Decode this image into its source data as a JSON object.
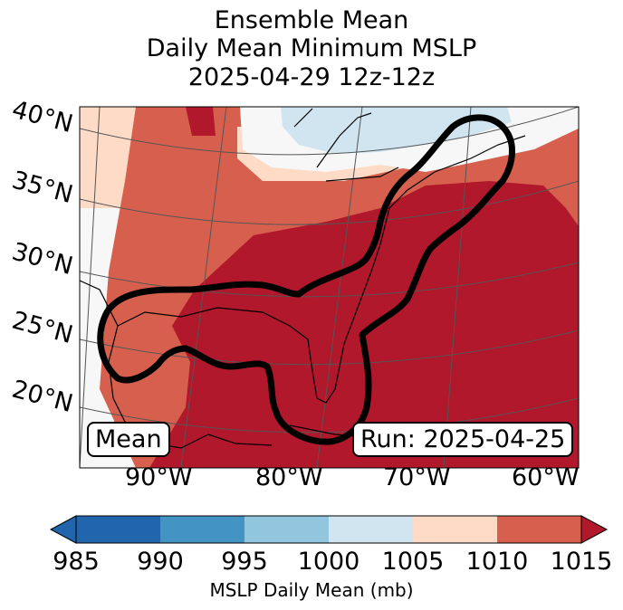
{
  "title": {
    "line1": "Ensemble Mean",
    "line2": "Daily Mean Minimum MSLP",
    "line3": "2025-04-29 12z-12z"
  },
  "map": {
    "lat_labels": [
      "40°N",
      "35°N",
      "30°N",
      "25°N",
      "20°N"
    ],
    "lon_labels": [
      "90°W",
      "80°W",
      "70°W",
      "60°W"
    ],
    "badge_left": "Mean",
    "badge_right": "Run: 2025-04-25",
    "colors": {
      "c985": "#2166ac",
      "c990": "#4393c3",
      "c995": "#92c5de",
      "c1000": "#d1e5f0",
      "c1005": "#f7f7f7",
      "c1010": "#fddbc7",
      "c1015": "#d6604d",
      "over": "#b2182b"
    }
  },
  "colorbar": {
    "ticks": [
      "985",
      "990",
      "995",
      "1000",
      "1005",
      "1010",
      "1015"
    ],
    "label": "MSLP Daily Mean (mb)"
  }
}
